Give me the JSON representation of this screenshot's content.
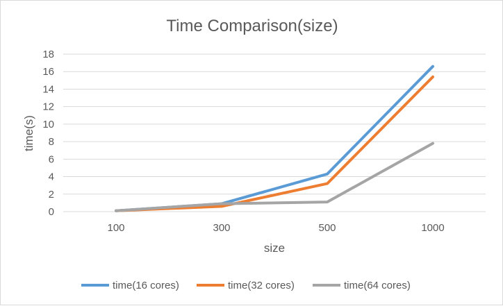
{
  "chart_data": {
    "type": "line",
    "title": "Time Comparison(size)",
    "xlabel": "size",
    "ylabel": "time(s)",
    "categories": [
      "100",
      "300",
      "500",
      "1000"
    ],
    "ylim": [
      0,
      18
    ],
    "yticks": [
      0,
      2,
      4,
      6,
      8,
      10,
      12,
      14,
      16,
      18
    ],
    "grid": true,
    "legend_position": "bottom",
    "series": [
      {
        "name": "time(16 cores)",
        "color": "#5B9BD5",
        "values": [
          0.1,
          0.9,
          4.3,
          16.6
        ]
      },
      {
        "name": "time(32 cores)",
        "color": "#ED7D31",
        "values": [
          0.1,
          0.6,
          3.2,
          15.4
        ]
      },
      {
        "name": "time(64 cores)",
        "color": "#A5A5A5",
        "values": [
          0.1,
          0.9,
          1.1,
          7.8
        ]
      }
    ]
  }
}
